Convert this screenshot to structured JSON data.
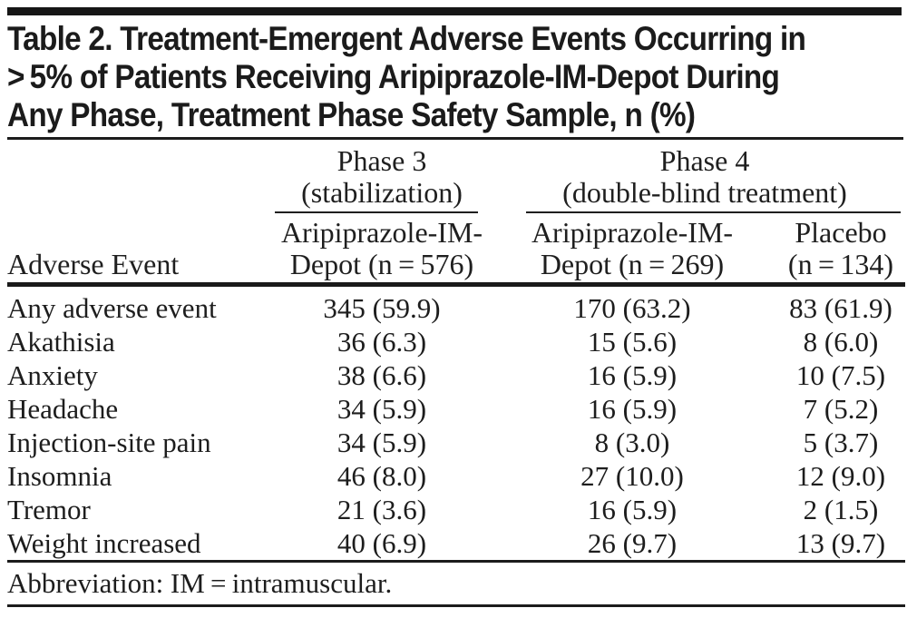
{
  "title": {
    "lines": [
      "Table 2. Treatment-Emergent Adverse Events Occurring in",
      "> 5% of Patients Receiving Aripiprazole-IM-Depot During",
      "Any Phase, Treatment Phase Safety Sample, n (%)"
    ]
  },
  "table": {
    "groups": {
      "phase3": {
        "title": "Phase 3",
        "subtitle": "(stabilization)"
      },
      "phase4": {
        "title": "Phase 4",
        "subtitle": "(double-blind treatment)"
      }
    },
    "columns": {
      "event": "Adverse Event",
      "phase3_drug": {
        "line1": "Aripiprazole-IM-",
        "line2": "Depot (n = 576)"
      },
      "phase4_drug": {
        "line1": "Aripiprazole-IM-",
        "line2": "Depot (n = 269)"
      },
      "phase4_placebo": {
        "line1": "Placebo",
        "line2": "(n = 134)"
      }
    },
    "rows": [
      {
        "event": "Any adverse event",
        "phase3_drug": "345 (59.9)",
        "phase4_drug": "170 (63.2)",
        "phase4_placebo": "83 (61.9)"
      },
      {
        "event": "Akathisia",
        "phase3_drug": "36 (6.3)",
        "phase4_drug": "15 (5.6)",
        "phase4_placebo": "8 (6.0)"
      },
      {
        "event": "Anxiety",
        "phase3_drug": "38 (6.6)",
        "phase4_drug": "16 (5.9)",
        "phase4_placebo": "10 (7.5)"
      },
      {
        "event": "Headache",
        "phase3_drug": "34 (5.9)",
        "phase4_drug": "16 (5.9)",
        "phase4_placebo": "7 (5.2)"
      },
      {
        "event": "Injection-site pain",
        "phase3_drug": "34 (5.9)",
        "phase4_drug": "8 (3.0)",
        "phase4_placebo": "5 (3.7)"
      },
      {
        "event": "Insomnia",
        "phase3_drug": "46 (8.0)",
        "phase4_drug": "27 (10.0)",
        "phase4_placebo": "12 (9.0)"
      },
      {
        "event": "Tremor",
        "phase3_drug": "21 (3.6)",
        "phase4_drug": "16 (5.9)",
        "phase4_placebo": "2 (1.5)"
      },
      {
        "event": "Weight increased",
        "phase3_drug": "40 (6.9)",
        "phase4_drug": "26 (9.7)",
        "phase4_placebo": "13 (9.7)"
      }
    ],
    "footnote": "Abbreviation: IM = intramuscular."
  },
  "colors": {
    "ink": "#1c1c1c",
    "background": "#ffffff"
  }
}
